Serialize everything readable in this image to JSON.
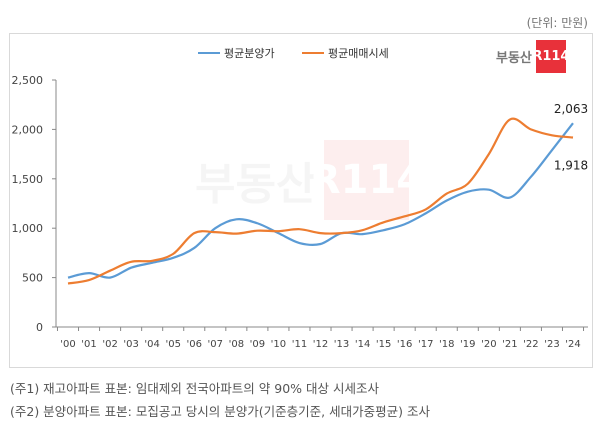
{
  "unit_label": "(단위: 만원)",
  "logo": {
    "text": "부동산",
    "box": "R114"
  },
  "notes": [
    "(주1) 재고아파트 표본: 임대제외 전국아파트의 약 90% 대상 시세조사",
    "(주2) 분양아파트 표본: 모집공고 당시의 분양가(기준층기준, 세대가중평균) 조사"
  ],
  "chart_data": {
    "type": "line",
    "categories": [
      "'00",
      "'01",
      "'02",
      "'03",
      "'04",
      "'05",
      "'06",
      "'07",
      "'08",
      "'09",
      "'10",
      "'11",
      "'12",
      "'13",
      "'14",
      "'15",
      "'16",
      "'17",
      "'18",
      "'19",
      "'20",
      "'21",
      "'22",
      "'23",
      "'24"
    ],
    "ylim": [
      0,
      2500
    ],
    "yticks": [
      0,
      500,
      1000,
      1500,
      2000,
      2500
    ],
    "ytick_labels": [
      "0",
      "500",
      "1,000",
      "1,500",
      "2,000",
      "2,500"
    ],
    "grid": false,
    "legend_placement": "top-center",
    "series": [
      {
        "name": "평균분양가",
        "color": "#5b9bd5",
        "values": [
          500,
          545,
          500,
          600,
          650,
          700,
          800,
          1000,
          1090,
          1050,
          950,
          850,
          840,
          950,
          940,
          980,
          1040,
          1150,
          1280,
          1370,
          1390,
          1310,
          1520,
          1790,
          2063
        ]
      },
      {
        "name": "평균매매시세",
        "color": "#ed7d31",
        "values": [
          440,
          475,
          570,
          660,
          670,
          740,
          950,
          960,
          945,
          975,
          970,
          990,
          950,
          950,
          980,
          1060,
          1120,
          1190,
          1350,
          1450,
          1750,
          2100,
          2000,
          1940,
          1918
        ]
      }
    ],
    "annotations": [
      {
        "series": 0,
        "category": "'24",
        "text": "2,063"
      },
      {
        "series": 1,
        "category": "'24",
        "text": "1,918"
      }
    ]
  }
}
